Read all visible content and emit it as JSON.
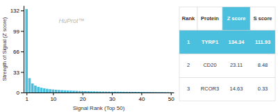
{
  "chart_data": {
    "type": "bar",
    "xlabel": "Signal Rank (Top 50)",
    "ylabel": "Strength of Signal (Z score)",
    "annotations": [
      "HuProt™"
    ],
    "x": [
      1,
      2,
      3,
      4,
      5,
      6,
      7,
      8,
      9,
      10,
      11,
      12,
      13,
      14,
      15,
      16,
      17,
      18,
      19,
      20,
      21,
      22,
      23,
      24,
      25,
      26,
      27,
      28,
      29,
      30,
      31,
      32,
      33,
      34,
      35,
      36,
      37,
      38,
      39,
      40,
      41,
      42,
      43,
      44,
      45,
      46,
      47,
      48,
      49,
      50
    ],
    "values": [
      134.34,
      23.11,
      14.63,
      11.2,
      9.1,
      7.8,
      6.8,
      6.0,
      5.4,
      4.9,
      4.5,
      4.1,
      3.8,
      3.5,
      3.3,
      3.1,
      2.9,
      2.7,
      2.55,
      2.4,
      2.25,
      2.1,
      2.0,
      1.9,
      1.8,
      1.7,
      1.6,
      1.55,
      1.5,
      1.45,
      1.4,
      1.35,
      1.3,
      1.25,
      1.2,
      1.15,
      1.1,
      1.05,
      1.0,
      0.95,
      0.9,
      0.85,
      0.8,
      0.75,
      0.7,
      0.65,
      0.6,
      0.55,
      0.5,
      0.45
    ],
    "color": "#4bbfde",
    "xlim": [
      0,
      51
    ],
    "xticks": [
      1,
      10,
      20,
      30,
      40,
      50
    ],
    "ylim": [
      0,
      140
    ],
    "yticks": [
      0,
      33,
      66,
      99,
      132
    ],
    "table_headers": [
      "Rank",
      "Protein",
      "Z score",
      "S score"
    ],
    "table_rows": [
      [
        "1",
        "TYRP1",
        "134.34",
        "111.93"
      ],
      [
        "2",
        "CD20",
        "23.11",
        "8.48"
      ],
      [
        "3",
        "RCOR3",
        "14.63",
        "0.33"
      ]
    ]
  }
}
